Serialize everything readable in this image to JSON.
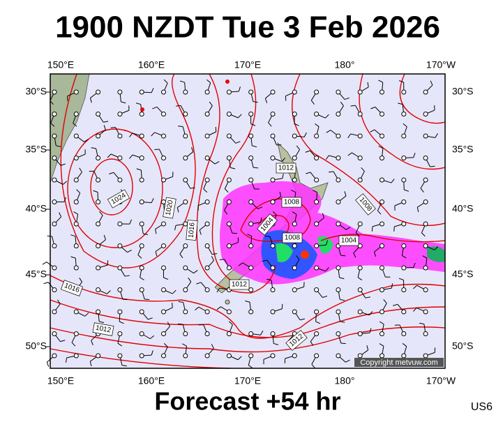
{
  "header": {
    "title": "1900 NZDT Tue 3 Feb 2026"
  },
  "map": {
    "lon_labels": [
      "150°E",
      "160°E",
      "170°E",
      "180°",
      "170°W"
    ],
    "lat_labels": [
      "30°S",
      "35°S",
      "40°S",
      "45°S",
      "50°S"
    ],
    "isobar_labels": [
      "1024",
      "1020",
      "1016",
      "1016",
      "1012",
      "1012",
      "1012",
      "1012",
      "1008",
      "1008",
      "1008",
      "1004",
      "1004"
    ],
    "copyright": "Copyright metvuw.com"
  },
  "footer": {
    "forecast": "Forecast +54 hr",
    "code": "US6"
  }
}
